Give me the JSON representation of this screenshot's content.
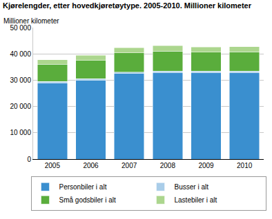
{
  "chart_data": {
    "type": "bar",
    "stacked": true,
    "title": "Kjørelengder, etter hovedkjøretøytype. 2005-2010. Millioner kilometer",
    "y_label": "Millioner kilometer",
    "categories": [
      "2005",
      "2006",
      "2007",
      "2008",
      "2009",
      "2010"
    ],
    "series": [
      {
        "name": "Personbiler i alt",
        "color": "#3a8fcf",
        "values": [
          28900,
          30000,
          32500,
          32900,
          32800,
          32800
        ]
      },
      {
        "name": "Busser i alt",
        "color": "#a9cde9",
        "values": [
          600,
          600,
          600,
          600,
          600,
          600
        ]
      },
      {
        "name": "Små godsbiler i alt",
        "color": "#5aad3c",
        "values": [
          6600,
          6900,
          7300,
          7500,
          7300,
          7400
        ]
      },
      {
        "name": "Lastebiler i alt",
        "color": "#acd68e",
        "values": [
          1700,
          1900,
          2000,
          2100,
          1900,
          1900
        ]
      }
    ],
    "ylim": [
      0,
      50000
    ],
    "yticks": [
      0,
      {
        "value": 10000,
        "label": "10 000"
      },
      {
        "value": 20000,
        "label": "20 000"
      },
      {
        "value": 30000,
        "label": "30 000"
      },
      {
        "value": 40000,
        "label": "40 000"
      },
      {
        "value": 50000,
        "label": "50 000"
      }
    ],
    "grid": true,
    "legend": "bottom"
  }
}
